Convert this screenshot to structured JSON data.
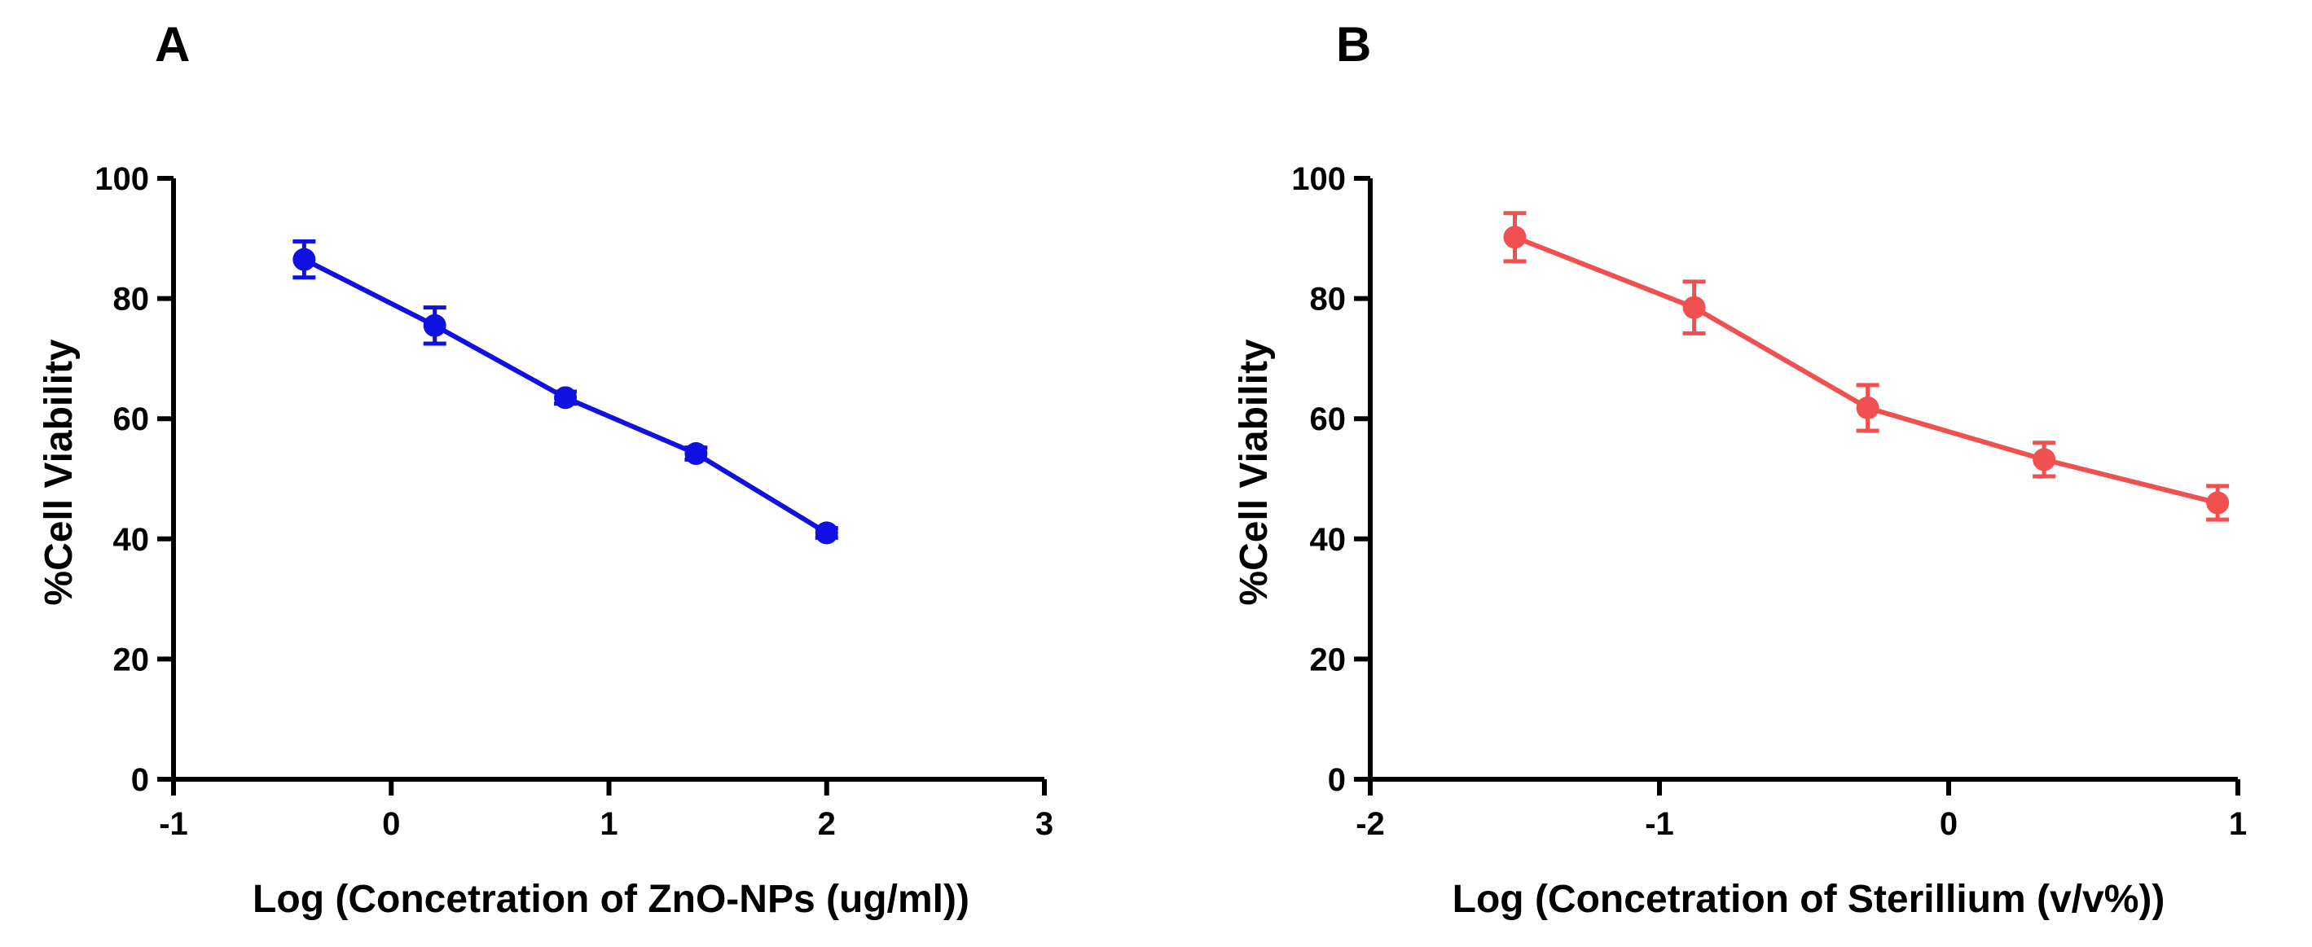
{
  "chart_data": [
    {
      "panel": "A",
      "type": "line",
      "title": "",
      "xlabel": "Log (Concetration of ZnO-NPs (ug/ml))",
      "ylabel": "%Cell Viability",
      "xlim": [
        -1,
        3
      ],
      "ylim": [
        0,
        100
      ],
      "xticks": [
        -1,
        0,
        1,
        2,
        3
      ],
      "yticks": [
        0,
        20,
        40,
        60,
        80,
        100
      ],
      "grid": false,
      "color": "#1010e0",
      "series": [
        {
          "name": "ZnO-NPs",
          "x": [
            -0.4,
            0.2,
            0.8,
            1.4,
            2.0
          ],
          "y": [
            86.5,
            75.5,
            63.5,
            54.2,
            41.0
          ],
          "err": [
            3.0,
            3.0,
            1.0,
            1.0,
            0.8
          ]
        }
      ]
    },
    {
      "panel": "B",
      "type": "line",
      "title": "",
      "xlabel": "Log (Concetration of Sterillium (v/v%))",
      "ylabel": "%Cell Viability",
      "xlim": [
        -2,
        1
      ],
      "ylim": [
        0,
        100
      ],
      "xticks": [
        -2,
        -1,
        0,
        1
      ],
      "yticks": [
        0,
        20,
        40,
        60,
        80,
        100
      ],
      "grid": false,
      "color": "#f05050",
      "series": [
        {
          "name": "Sterillium",
          "x": [
            -1.5,
            -0.88,
            -0.28,
            0.33,
            0.93
          ],
          "y": [
            90.2,
            78.5,
            61.8,
            53.2,
            46.0
          ],
          "err": [
            4.0,
            4.3,
            3.8,
            2.8,
            2.8
          ]
        }
      ]
    }
  ]
}
